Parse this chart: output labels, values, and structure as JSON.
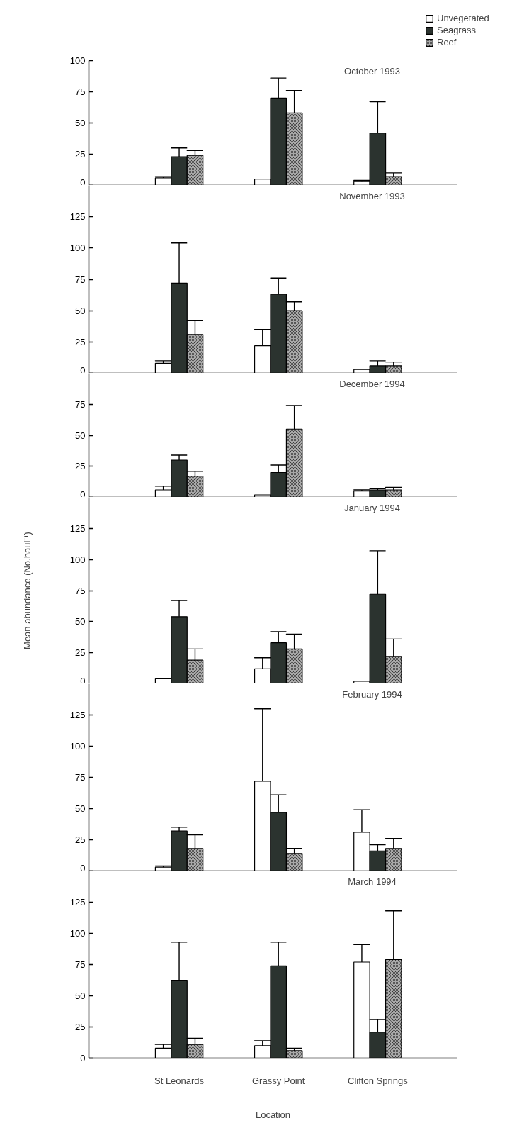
{
  "chart_data": [
    {
      "type": "bar",
      "title": "October 1993",
      "categories": [
        null,
        null,
        null
      ],
      "ylim": [
        0,
        100
      ],
      "yticks": [
        0,
        25,
        50,
        75,
        100
      ],
      "tick_labels": "y",
      "legend": "top right",
      "series": [
        {
          "name": "Unvegetated",
          "color": "#ffffff",
          "values": [
            6,
            5,
            3
          ],
          "errors": [
            [
              6,
              7
            ],
            null,
            [
              3,
              4
            ]
          ]
        },
        {
          "name": "Seagrass",
          "color": "#2b332f",
          "values": [
            23,
            70,
            42
          ],
          "errors": [
            [
              23,
              30
            ],
            [
              70,
              86
            ],
            [
              42,
              67
            ]
          ]
        },
        {
          "name": "Reef",
          "color": "#a8a8a8",
          "values": [
            24,
            58,
            7
          ],
          "errors": [
            [
              24,
              28
            ],
            [
              58,
              76
            ],
            [
              7,
              10
            ]
          ]
        }
      ]
    },
    {
      "type": "bar",
      "title": "November 1993",
      "categories": [
        null,
        null,
        null
      ],
      "ylim": [
        0,
        150
      ],
      "yticks": [
        0,
        25,
        50,
        75,
        100,
        125
      ],
      "tick_labels": "y",
      "series": [
        {
          "color": "#ffffff",
          "values": [
            8,
            22,
            3
          ],
          "errors": [
            [
              8,
              10
            ],
            [
              22,
              35
            ],
            null
          ]
        },
        {
          "color": "#2b332f",
          "values": [
            72,
            63,
            6
          ],
          "errors": [
            [
              72,
              104
            ],
            [
              63,
              76
            ],
            [
              6,
              10
            ]
          ]
        },
        {
          "color": "#a8a8a8",
          "values": [
            31,
            50,
            6
          ],
          "errors": [
            [
              31,
              42
            ],
            [
              50,
              57
            ],
            [
              6,
              9
            ]
          ]
        }
      ]
    },
    {
      "type": "bar",
      "title": "December 1994",
      "categories": [
        null,
        null,
        null
      ],
      "ylim": [
        0,
        100
      ],
      "yticks": [
        0,
        25,
        50,
        75
      ],
      "tick_labels": "y",
      "series": [
        {
          "color": "#ffffff",
          "values": [
            6,
            2,
            5
          ],
          "errors": [
            [
              6,
              9
            ],
            null,
            [
              5,
              6
            ]
          ]
        },
        {
          "color": "#2b332f",
          "values": [
            30,
            20,
            6
          ],
          "errors": [
            [
              30,
              34
            ],
            [
              20,
              26
            ],
            [
              6,
              7
            ]
          ]
        },
        {
          "color": "#a8a8a8",
          "values": [
            17,
            55,
            6
          ],
          "errors": [
            [
              17,
              21
            ],
            [
              55,
              74
            ],
            [
              6,
              8
            ]
          ]
        }
      ]
    },
    {
      "type": "bar",
      "title": "January 1994",
      "ylabel": "Mean abundance (No.haul⁻¹)",
      "categories": [
        null,
        null,
        null
      ],
      "ylim": [
        0,
        150
      ],
      "yticks": [
        0,
        25,
        50,
        75,
        100,
        125
      ],
      "tick_labels": "y",
      "series": [
        {
          "color": "#ffffff",
          "values": [
            4,
            12,
            2
          ],
          "errors": [
            null,
            [
              12,
              21
            ],
            null
          ]
        },
        {
          "color": "#2b332f",
          "values": [
            54,
            33,
            72
          ],
          "errors": [
            [
              54,
              67
            ],
            [
              33,
              42
            ],
            [
              72,
              107
            ]
          ]
        },
        {
          "color": "#a8a8a8",
          "values": [
            19,
            28,
            22
          ],
          "errors": [
            [
              19,
              28
            ],
            [
              28,
              40
            ],
            [
              22,
              36
            ]
          ]
        }
      ]
    },
    {
      "type": "bar",
      "title": "February 1994",
      "categories": [
        null,
        null,
        null
      ],
      "ylim": [
        0,
        150
      ],
      "yticks": [
        0,
        25,
        50,
        75,
        100,
        125
      ],
      "tick_labels": "y",
      "series": [
        {
          "color": "#ffffff",
          "values": [
            3,
            72,
            31
          ],
          "errors": [
            [
              3,
              4
            ],
            [
              72,
              130
            ],
            [
              31,
              49
            ]
          ]
        },
        {
          "color": "#2b332f",
          "values": [
            32,
            47,
            16
          ],
          "errors": [
            [
              32,
              35
            ],
            [
              47,
              61
            ],
            [
              16,
              21
            ]
          ]
        },
        {
          "color": "#a8a8a8",
          "values": [
            18,
            14,
            18
          ],
          "errors": [
            [
              18,
              29
            ],
            [
              14,
              18
            ],
            [
              18,
              26
            ]
          ]
        }
      ]
    },
    {
      "type": "bar",
      "title": "March 1994",
      "xlabel": "Location",
      "categories": [
        "St Leonards",
        "Grassy Point",
        "Clifton Springs"
      ],
      "ylim": [
        0,
        150
      ],
      "yticks": [
        0,
        25,
        50,
        75,
        100,
        125
      ],
      "series": [
        {
          "color": "#ffffff",
          "values": [
            8,
            10,
            77
          ],
          "errors": [
            [
              8,
              11
            ],
            [
              10,
              14
            ],
            [
              77,
              91
            ]
          ]
        },
        {
          "color": "#2b332f",
          "values": [
            62,
            74,
            21
          ],
          "errors": [
            [
              62,
              93
            ],
            [
              74,
              93
            ],
            [
              21,
              31
            ]
          ]
        },
        {
          "color": "#a8a8a8",
          "values": [
            11,
            6,
            79
          ],
          "errors": [
            [
              11,
              16
            ],
            [
              6,
              8
            ],
            [
              79,
              118
            ]
          ]
        }
      ]
    }
  ]
}
